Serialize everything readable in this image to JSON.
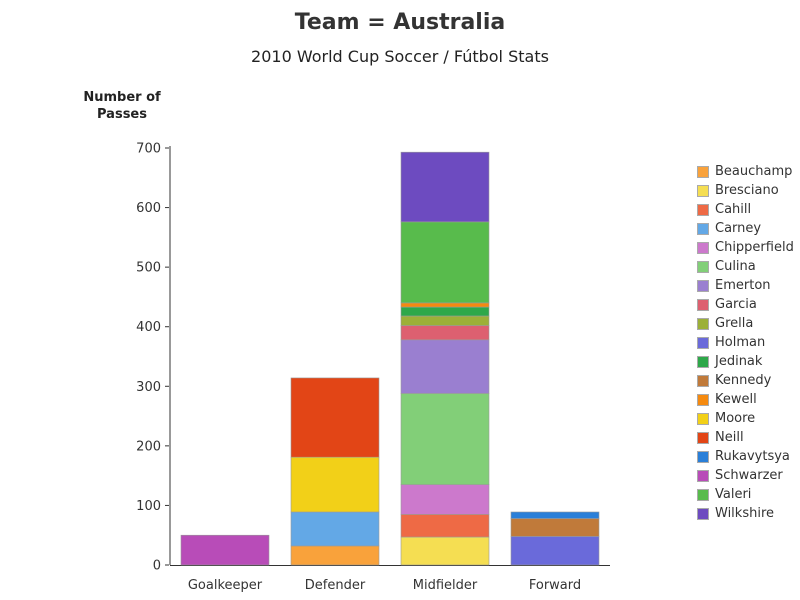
{
  "chart_data": {
    "type": "bar",
    "stacked": true,
    "title": "Team = Australia",
    "subtitle": "2010 World Cup Soccer / Fútbol Stats",
    "ylabel": "Number of\nPasses",
    "xlabel": "",
    "ylim": [
      0,
      700
    ],
    "yticks": [
      0,
      100,
      200,
      300,
      400,
      500,
      600,
      700
    ],
    "categories": [
      "Goalkeeper",
      "Defender",
      "Midfielder",
      "Forward"
    ],
    "legend_position": "right",
    "grid": false,
    "series": [
      {
        "name": "Beauchamp",
        "color": "#F9A23B",
        "values": [
          0,
          32,
          0,
          0
        ]
      },
      {
        "name": "Bresciano",
        "color": "#F5DE52",
        "values": [
          0,
          0,
          47,
          0
        ]
      },
      {
        "name": "Cahill",
        "color": "#EE6A45",
        "values": [
          0,
          0,
          38,
          0
        ]
      },
      {
        "name": "Carney",
        "color": "#63A8E6",
        "values": [
          0,
          57,
          0,
          0
        ]
      },
      {
        "name": "Chipperfield",
        "color": "#CC79CC",
        "values": [
          0,
          0,
          50,
          0
        ]
      },
      {
        "name": "Culina",
        "color": "#82CF78",
        "values": [
          0,
          0,
          153,
          0
        ]
      },
      {
        "name": "Emerton",
        "color": "#9A7FD0",
        "values": [
          0,
          0,
          90,
          0
        ]
      },
      {
        "name": "Garcia",
        "color": "#DD6070",
        "values": [
          0,
          0,
          24,
          0
        ]
      },
      {
        "name": "Grella",
        "color": "#9CB038",
        "values": [
          0,
          0,
          16,
          0
        ]
      },
      {
        "name": "Holman",
        "color": "#6A6ADA",
        "values": [
          0,
          0,
          0,
          48
        ]
      },
      {
        "name": "Jedinak",
        "color": "#2EA84A",
        "values": [
          0,
          0,
          15,
          0
        ]
      },
      {
        "name": "Kennedy",
        "color": "#C07A3A",
        "values": [
          0,
          0,
          0,
          30
        ]
      },
      {
        "name": "Kewell",
        "color": "#F58A10",
        "values": [
          0,
          0,
          7,
          0
        ]
      },
      {
        "name": "Moore",
        "color": "#F2D018",
        "values": [
          0,
          92,
          0,
          0
        ]
      },
      {
        "name": "Neill",
        "color": "#E24516",
        "values": [
          0,
          133,
          0,
          0
        ]
      },
      {
        "name": "Rukavytsya",
        "color": "#2A7FD8",
        "values": [
          0,
          0,
          0,
          11
        ]
      },
      {
        "name": "Schwarzer",
        "color": "#B84CB8",
        "values": [
          50,
          0,
          0,
          0
        ]
      },
      {
        "name": "Valeri",
        "color": "#58BB4C",
        "values": [
          0,
          0,
          136,
          0
        ]
      },
      {
        "name": "Wilkshire",
        "color": "#6D4BC0",
        "values": [
          0,
          0,
          117,
          0
        ]
      }
    ]
  }
}
